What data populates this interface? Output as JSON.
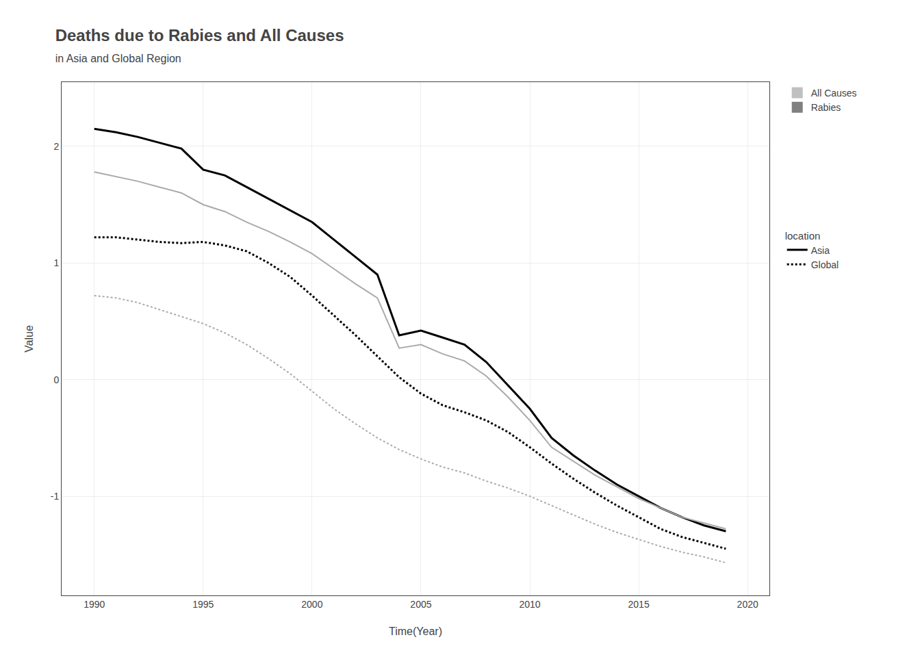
{
  "chart_data": {
    "type": "line",
    "title": "Deaths due to Rabies and All Causes",
    "subtitle": "in Asia and Global Region",
    "x_label": "Time(Year)",
    "y_label": "Value",
    "x": [
      1990,
      1991,
      1992,
      1993,
      1994,
      1995,
      1996,
      1997,
      1998,
      1999,
      2000,
      2001,
      2002,
      2003,
      2004,
      2005,
      2006,
      2007,
      2008,
      2009,
      2010,
      2011,
      2012,
      2013,
      2014,
      2015,
      2016,
      2017,
      2018,
      2019
    ],
    "series": [
      {
        "color": "#000000",
        "line_style": "solid",
        "values": [
          2.15,
          2.12,
          2.08,
          2.03,
          1.98,
          1.8,
          1.75,
          1.65,
          1.55,
          1.45,
          1.35,
          1.2,
          1.05,
          0.9,
          0.38,
          0.42,
          0.36,
          0.3,
          0.15,
          -0.05,
          -0.25,
          -0.5,
          -0.65,
          -0.78,
          -0.9,
          -1.0,
          -1.1,
          -1.18,
          -1.25,
          -1.3
        ]
      },
      {
        "color": "#aaaaaa",
        "line_style": "solid",
        "values": [
          1.78,
          1.74,
          1.7,
          1.65,
          1.6,
          1.5,
          1.44,
          1.35,
          1.27,
          1.18,
          1.08,
          0.95,
          0.82,
          0.7,
          0.27,
          0.3,
          0.22,
          0.16,
          0.03,
          -0.15,
          -0.35,
          -0.58,
          -0.7,
          -0.82,
          -0.92,
          -1.02,
          -1.1,
          -1.18,
          -1.23,
          -1.28
        ]
      },
      {
        "color": "#000000",
        "line_style": "dotted",
        "values": [
          1.22,
          1.22,
          1.2,
          1.18,
          1.17,
          1.18,
          1.15,
          1.1,
          1.0,
          0.88,
          0.72,
          0.55,
          0.38,
          0.2,
          0.02,
          -0.12,
          -0.22,
          -0.28,
          -0.35,
          -0.45,
          -0.58,
          -0.72,
          -0.85,
          -0.97,
          -1.08,
          -1.18,
          -1.28,
          -1.35,
          -1.4,
          -1.45
        ]
      },
      {
        "color": "#aaaaaa",
        "line_style": "dotted",
        "values": [
          0.72,
          0.7,
          0.66,
          0.6,
          0.54,
          0.48,
          0.4,
          0.3,
          0.18,
          0.05,
          -0.1,
          -0.25,
          -0.38,
          -0.5,
          -0.6,
          -0.68,
          -0.75,
          -0.8,
          -0.87,
          -0.93,
          -1.0,
          -1.08,
          -1.16,
          -1.24,
          -1.31,
          -1.37,
          -1.43,
          -1.48,
          -1.52,
          -1.57
        ]
      }
    ],
    "legend_groups": [
      {
        "entries": [
          {
            "name": "All Causes",
            "color": "#c0c0c0",
            "marker": "square"
          },
          {
            "name": "Rabies",
            "color": "#808080",
            "marker": "square"
          }
        ]
      },
      {
        "title": "location",
        "entries": [
          {
            "name": "Asia",
            "color": "#000000",
            "line_style": "solid"
          },
          {
            "name": "Global",
            "color": "#000000",
            "line_style": "dotted"
          }
        ]
      }
    ],
    "xlim": [
      1988.5,
      2021
    ],
    "xticks": [
      1990,
      1995,
      2000,
      2005,
      2010,
      2015,
      2020
    ],
    "ylim": [
      -1.85,
      2.55
    ],
    "yticks": [
      -1,
      0,
      1,
      2
    ],
    "grid": true
  }
}
